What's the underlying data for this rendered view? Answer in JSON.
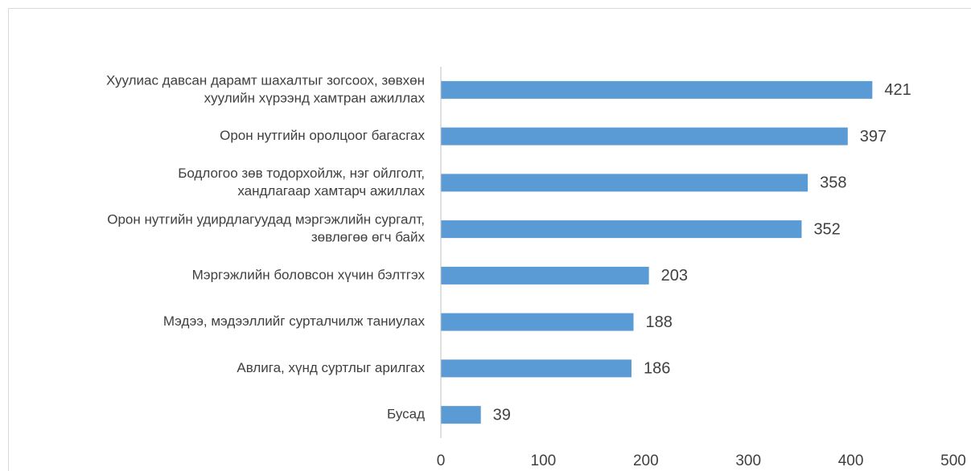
{
  "chart_data": {
    "type": "barh",
    "categories": [
      [
        "Хуулиас давсан дарамт шахалтыг зогсоох, зөвхөн",
        "хуулийн хүрээнд хамтран ажиллах"
      ],
      [
        "Орон нутгийн оролцоог багасгах"
      ],
      [
        "Бодлогоо зөв тодорхойлж, нэг ойлголт,",
        "хандлагаар хамтарч ажиллах"
      ],
      [
        "Орон нутгийн удирдлагуудад мэргэжлийн сургалт,",
        "зөвлөгөө өгч байх"
      ],
      [
        "Мэргэжлийн боловсон хүчин бэлтгэх"
      ],
      [
        "Мэдээ, мэдээллийг сурталчилж таниулах"
      ],
      [
        "Авлига, хүнд суртлыг арилгах"
      ],
      [
        "Бусад"
      ]
    ],
    "values": [
      421,
      397,
      358,
      352,
      203,
      188,
      186,
      39
    ],
    "color": "#5b9bd5",
    "xlim": [
      0,
      500
    ],
    "xticks": [
      0,
      100,
      200,
      300,
      400,
      500
    ],
    "grid": false
  }
}
